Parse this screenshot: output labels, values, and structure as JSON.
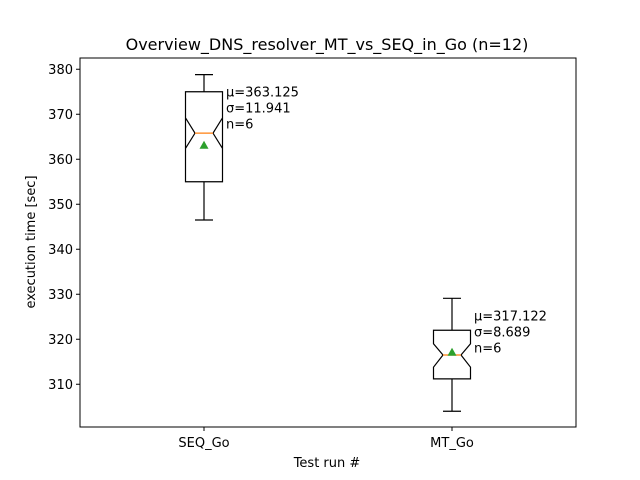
{
  "chart_data": {
    "type": "boxplot",
    "title": "Overview_DNS_resolver_MT_vs_SEQ_in_Go (n=12)",
    "xlabel": "Test run #",
    "ylabel": "execution time [sec]",
    "ylim": [
      300.5,
      382.5
    ],
    "yticks": [
      310,
      320,
      330,
      340,
      350,
      360,
      370,
      380
    ],
    "categories": [
      "SEQ_Go",
      "MT_Go"
    ],
    "boxes": [
      {
        "name": "SEQ_Go",
        "whisker_low": 346.5,
        "q1": 355.0,
        "median": 365.8,
        "q3": 375.0,
        "whisker_high": 378.8,
        "notch_low": 369.2,
        "notch_high": 362.4,
        "mean": 363.125,
        "annotation": [
          "μ=363.125",
          "σ=11.941",
          "n=6"
        ]
      },
      {
        "name": "MT_Go",
        "whisker_low": 304.0,
        "q1": 311.2,
        "median": 316.5,
        "q3": 322.0,
        "whisker_high": 329.1,
        "notch_low": 313.8,
        "notch_high": 319.0,
        "mean": 317.122,
        "annotation": [
          "μ=317.122",
          "σ=8.689",
          "n=6"
        ]
      }
    ],
    "colors": {
      "box": "#000000",
      "median": "#ff7f0e",
      "mean_marker": "#2ca02c"
    }
  }
}
